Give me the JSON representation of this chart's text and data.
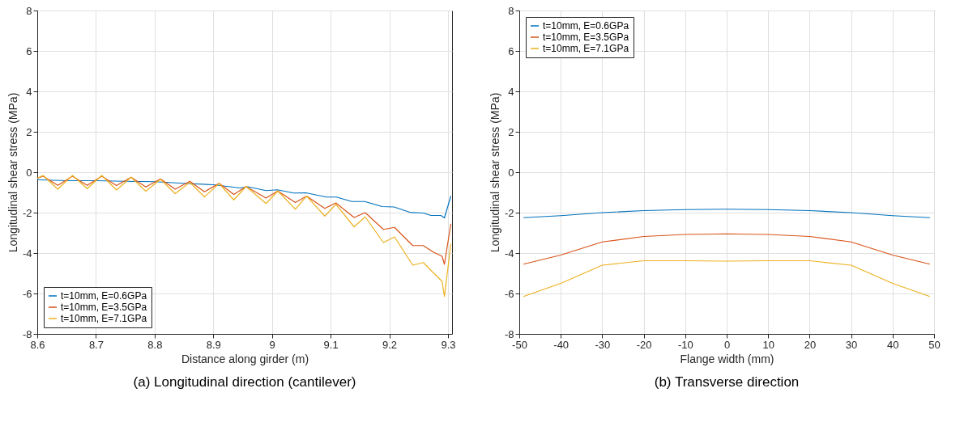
{
  "chart_data": [
    {
      "type": "line",
      "title": "(a) Longitudinal direction (cantilever)",
      "xlabel": "Distance along girder (m)",
      "ylabel": "Longitudinal shear stress (MPa)",
      "xlim": [
        8.6,
        9.307
      ],
      "xticks": [
        8.6,
        8.7,
        8.8,
        8.9,
        9,
        9.1,
        9.2,
        9.3
      ],
      "ylim": [
        -8,
        8
      ],
      "yticks": [
        -8,
        -6,
        -4,
        -2,
        0,
        2,
        4,
        6,
        8
      ],
      "grid": true,
      "legend": "bottom left",
      "line_style": "solid",
      "marker": "none",
      "series": [
        {
          "name": "t=10mm, E=0.6GPa",
          "color": "#0072bd",
          "x": [
            8.6,
            8.65,
            8.7,
            8.75,
            8.8,
            8.85,
            8.9,
            8.946,
            8.959,
            8.99,
            9.009,
            9.037,
            9.058,
            9.093,
            9.11,
            9.136,
            9.158,
            9.188,
            9.208,
            9.236,
            9.258,
            9.271,
            9.288,
            9.294,
            9.305
          ],
          "values": [
            -0.37,
            -0.42,
            -0.42,
            -0.45,
            -0.47,
            -0.55,
            -0.62,
            -0.78,
            -0.72,
            -0.91,
            -0.87,
            -1.03,
            -1.02,
            -1.23,
            -1.23,
            -1.45,
            -1.45,
            -1.7,
            -1.72,
            -1.99,
            -2.02,
            -2.14,
            -2.14,
            -2.26,
            -1.18
          ]
        },
        {
          "name": "t=10mm, E=3.5GPa",
          "color": "#d95319",
          "x": [
            8.6,
            8.61,
            8.635,
            8.66,
            8.685,
            8.71,
            8.735,
            8.76,
            8.785,
            8.81,
            8.835,
            8.86,
            8.885,
            8.91,
            8.935,
            8.956,
            8.99,
            9.01,
            9.04,
            9.059,
            9.09,
            9.109,
            9.14,
            9.159,
            9.19,
            9.209,
            9.24,
            9.258,
            9.275,
            9.29,
            9.294,
            9.305
          ],
          "values": [
            -0.3,
            -0.2,
            -0.65,
            -0.2,
            -0.65,
            -0.2,
            -0.66,
            -0.25,
            -0.73,
            -0.33,
            -0.84,
            -0.45,
            -0.97,
            -0.55,
            -1.1,
            -0.71,
            -1.28,
            -0.93,
            -1.5,
            -1.18,
            -1.79,
            -1.52,
            -2.24,
            -2.0,
            -2.83,
            -2.73,
            -3.63,
            -3.63,
            -3.95,
            -4.16,
            -4.56,
            -2.55
          ]
        },
        {
          "name": "t=10mm, E=7.1GPa",
          "color": "#edb120",
          "x": [
            8.6,
            8.61,
            8.635,
            8.66,
            8.685,
            8.71,
            8.735,
            8.76,
            8.785,
            8.81,
            8.835,
            8.86,
            8.885,
            8.91,
            8.935,
            8.956,
            8.99,
            9.01,
            9.04,
            9.059,
            9.09,
            9.109,
            9.14,
            9.159,
            9.19,
            9.209,
            9.24,
            9.258,
            9.275,
            9.29,
            9.294,
            9.305
          ],
          "values": [
            -0.3,
            -0.16,
            -0.84,
            -0.16,
            -0.81,
            -0.16,
            -0.88,
            -0.25,
            -0.94,
            -0.35,
            -1.06,
            -0.5,
            -1.22,
            -0.56,
            -1.37,
            -0.71,
            -1.55,
            -0.93,
            -1.83,
            -1.18,
            -2.17,
            -1.59,
            -2.7,
            -2.21,
            -3.48,
            -3.2,
            -4.6,
            -4.47,
            -4.97,
            -5.4,
            -6.15,
            -3.54
          ]
        }
      ]
    },
    {
      "type": "line",
      "title": "(b) Transverse direction",
      "xlabel": "Flange width (mm)",
      "ylabel": "Longitudinal shear stress (MPa)",
      "xlim": [
        -50,
        50
      ],
      "xticks": [
        -50,
        -40,
        -30,
        -20,
        -10,
        0,
        10,
        20,
        30,
        40,
        50
      ],
      "ylim": [
        -8,
        8
      ],
      "yticks": [
        -8,
        -6,
        -4,
        -2,
        0,
        2,
        4,
        6,
        8
      ],
      "grid": true,
      "legend": "top left",
      "line_style": "solid",
      "marker": "none",
      "x": [
        -49,
        -40,
        -30,
        -20,
        -10,
        0,
        10,
        20,
        30,
        40,
        49
      ],
      "series": [
        {
          "name": "t=10mm, E=0.6GPa",
          "color": "#0072bd",
          "values": [
            -2.25,
            -2.15,
            -2.0,
            -1.9,
            -1.85,
            -1.83,
            -1.85,
            -1.9,
            -2.0,
            -2.15,
            -2.25
          ]
        },
        {
          "name": "t=10mm, E=3.5GPa",
          "color": "#d95319",
          "values": [
            -4.55,
            -4.1,
            -3.45,
            -3.18,
            -3.08,
            -3.05,
            -3.08,
            -3.18,
            -3.45,
            -4.1,
            -4.55
          ]
        },
        {
          "name": "t=10mm, E=7.1GPa",
          "color": "#edb120",
          "values": [
            -6.15,
            -5.5,
            -4.6,
            -4.38,
            -4.38,
            -4.4,
            -4.38,
            -4.38,
            -4.6,
            -5.5,
            -6.15
          ]
        }
      ]
    }
  ]
}
